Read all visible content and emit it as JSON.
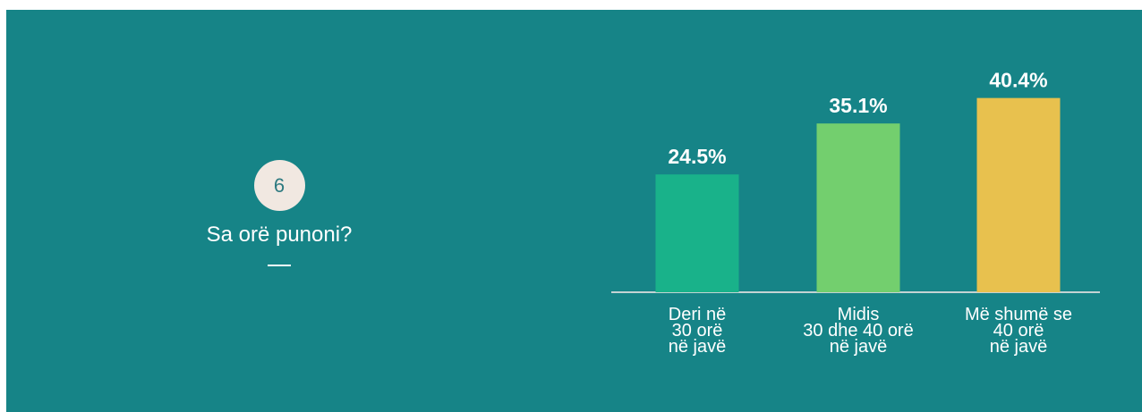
{
  "question": {
    "number": "6",
    "text": "Sa orë punoni?",
    "dash": "—"
  },
  "colors": {
    "panel_bg": "#168487",
    "axis": "#c4d3d3",
    "bars": [
      "#19b28a",
      "#73cf6e",
      "#e8c14e"
    ]
  },
  "chart_data": {
    "type": "bar",
    "categories": [
      [
        "Deri në",
        "30 orë",
        "në javë"
      ],
      [
        "Midis",
        "30 dhe 40 orë",
        "në javë"
      ],
      [
        "Më shumë se",
        "40 orë",
        "në javë"
      ]
    ],
    "values": [
      24.5,
      35.1,
      40.4
    ],
    "value_labels": [
      "24.5%",
      "35.1%",
      "40.4%"
    ],
    "ylim": [
      0,
      45
    ],
    "grid": false,
    "legend": "none"
  }
}
